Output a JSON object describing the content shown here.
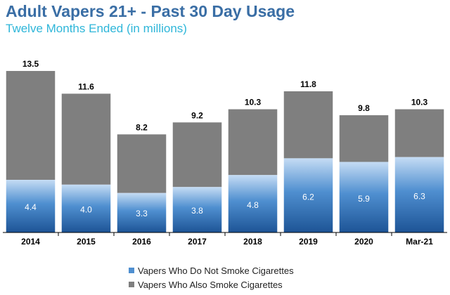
{
  "header": {
    "title": "Adult Vapers 21+ - Past 30 Day Usage",
    "subtitle": "Twelve Months Ended (in millions)"
  },
  "colors": {
    "nonsmoker_top": "#c5dcf4",
    "nonsmoker_mid": "#4f8fd0",
    "nonsmoker_bottom": "#1d5496",
    "smoker": "#7f7f7f",
    "axis": "#000000"
  },
  "chart_data": {
    "type": "bar",
    "stacked": true,
    "title": "Adult Vapers 21+ - Past 30 Day Usage",
    "subtitle": "Twelve Months Ended (in millions)",
    "categories": [
      "2014",
      "2015",
      "2016",
      "2017",
      "2018",
      "2019",
      "2020",
      "Mar-21"
    ],
    "series": [
      {
        "name": "Vapers Who Do Not Smoke Cigarettes",
        "values": [
          4.4,
          4.0,
          3.3,
          3.8,
          4.8,
          6.2,
          5.9,
          6.3
        ]
      },
      {
        "name": "Vapers Who Also Smoke Cigarettes",
        "values": [
          9.1,
          7.6,
          4.9,
          5.4,
          5.5,
          5.6,
          3.9,
          4.0
        ]
      }
    ],
    "totals": [
      "13.5",
      "11.6",
      "8.2",
      "9.2",
      "10.3",
      "11.8",
      "9.8",
      "10.3"
    ],
    "segment_labels": [
      "4.4",
      "4.0",
      "3.3",
      "3.8",
      "4.8",
      "6.2",
      "5.9",
      "6.3"
    ],
    "ylim": [
      0,
      14.5
    ],
    "grid": false,
    "legend": "bottom"
  }
}
